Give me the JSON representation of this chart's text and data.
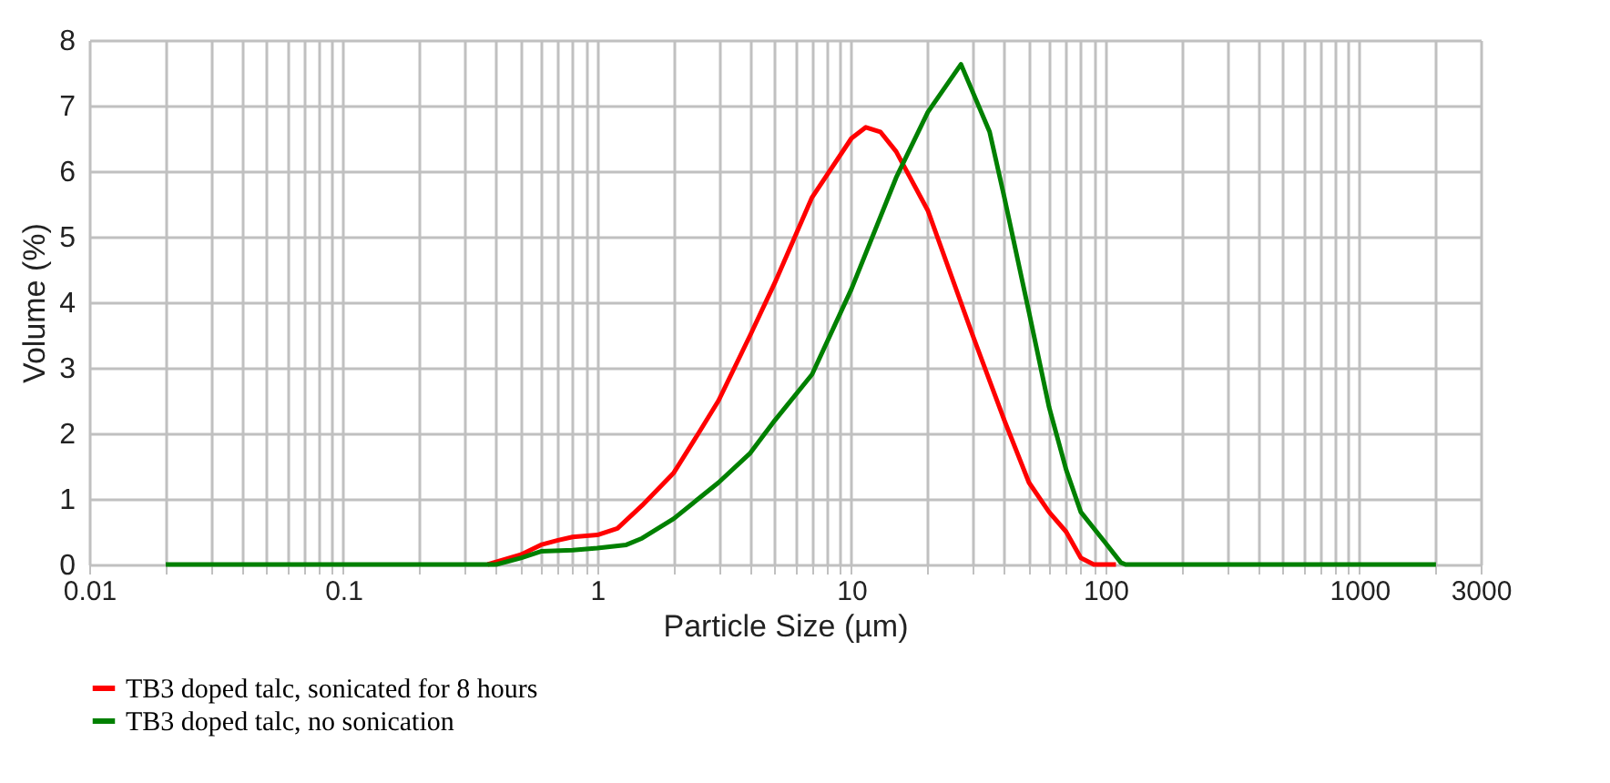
{
  "chart_data": {
    "type": "line",
    "xlabel": "Particle Size (µm)",
    "ylabel": "Volume (%)",
    "log": "x",
    "grid": true,
    "legend": "bottom left",
    "marker": "none",
    "line_style": "solid",
    "xlim": [
      0.01,
      3000
    ],
    "ylim": [
      0,
      8
    ],
    "xticks": [
      0.01,
      {
        "value": 0.02,
        "label": null
      },
      {
        "value": 0.03,
        "label": null
      },
      {
        "value": 0.04,
        "label": null
      },
      {
        "value": 0.05,
        "label": null
      },
      {
        "value": 0.06,
        "label": null
      },
      {
        "value": 0.07,
        "label": null
      },
      {
        "value": 0.08,
        "label": null
      },
      {
        "value": 0.09,
        "label": null
      },
      0.1,
      {
        "value": 0.2,
        "label": null
      },
      {
        "value": 0.3,
        "label": null
      },
      {
        "value": 0.4,
        "label": null
      },
      {
        "value": 0.5,
        "label": null
      },
      {
        "value": 0.6,
        "label": null
      },
      {
        "value": 0.7,
        "label": null
      },
      {
        "value": 0.8,
        "label": null
      },
      {
        "value": 0.9,
        "label": null
      },
      1,
      {
        "value": 2,
        "label": null
      },
      {
        "value": 3,
        "label": null
      },
      {
        "value": 4,
        "label": null
      },
      {
        "value": 5,
        "label": null
      },
      {
        "value": 6,
        "label": null
      },
      {
        "value": 7,
        "label": null
      },
      {
        "value": 8,
        "label": null
      },
      {
        "value": 9,
        "label": null
      },
      10,
      {
        "value": 20,
        "label": null
      },
      {
        "value": 30,
        "label": null
      },
      {
        "value": 40,
        "label": null
      },
      {
        "value": 50,
        "label": null
      },
      {
        "value": 60,
        "label": null
      },
      {
        "value": 70,
        "label": null
      },
      {
        "value": 80,
        "label": null
      },
      {
        "value": 90,
        "label": null
      },
      100,
      {
        "value": 200,
        "label": null
      },
      {
        "value": 300,
        "label": null
      },
      {
        "value": 400,
        "label": null
      },
      {
        "value": 500,
        "label": null
      },
      {
        "value": 600,
        "label": null
      },
      {
        "value": 700,
        "label": null
      },
      {
        "value": 800,
        "label": null
      },
      {
        "value": 900,
        "label": null
      },
      1000,
      {
        "value": 2000,
        "label": null
      },
      3000
    ],
    "yticks": [
      0,
      1,
      2,
      3,
      4,
      5,
      6,
      7,
      8
    ],
    "series": [
      {
        "name": "TB3 doped talc, sonicated for 8 hours",
        "color": "#ff0000",
        "x": [
          0.37,
          0.45,
          0.5,
          0.6,
          0.7,
          0.8,
          1,
          1.2,
          1.5,
          2,
          2.5,
          3,
          4,
          5,
          7,
          10,
          11.4,
          13,
          15,
          20,
          30,
          40,
          50,
          60,
          70,
          80,
          90,
          110
        ],
        "values": [
          0,
          0.1,
          0.15,
          0.3,
          0.37,
          0.42,
          0.45,
          0.55,
          0.9,
          1.4,
          2.0,
          2.5,
          3.5,
          4.3,
          5.6,
          6.5,
          6.67,
          6.6,
          6.3,
          5.4,
          3.5,
          2.2,
          1.25,
          0.8,
          0.5,
          0.1,
          0,
          0
        ]
      },
      {
        "name": "TB3 doped talc, no sonication",
        "color": "#008000",
        "x": [
          0.02,
          0.4,
          0.5,
          0.6,
          0.8,
          1,
          1.3,
          1.5,
          2,
          3,
          4,
          5,
          7,
          10,
          15,
          20,
          27,
          35,
          40,
          50,
          60,
          70,
          80,
          100,
          115,
          120,
          2000
        ],
        "values": [
          0,
          0,
          0.1,
          0.2,
          0.22,
          0.25,
          0.3,
          0.4,
          0.7,
          1.25,
          1.7,
          2.2,
          2.9,
          4.2,
          5.9,
          6.9,
          7.63,
          6.6,
          5.6,
          3.85,
          2.4,
          1.45,
          0.8,
          0.33,
          0.03,
          0,
          0
        ]
      }
    ]
  }
}
